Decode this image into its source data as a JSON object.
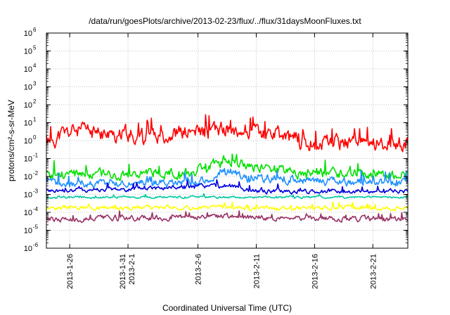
{
  "chart_data": {
    "type": "line",
    "title": "/data/run/goesPlots/archive/2013-02-23/flux/../flux/31daysMoonFluxes.txt",
    "xlabel": "Coordinated Universal Time (UTC)",
    "ylabel": "protons/cm²-s-sr-MeV",
    "y_scale": "log",
    "ylim": [
      1e-06,
      1000000.0
    ],
    "y_ticks": [
      {
        "exp": "-6",
        "value": 1e-06
      },
      {
        "exp": "-5",
        "value": 1e-05
      },
      {
        "exp": "-4",
        "value": 0.0001
      },
      {
        "exp": "-3",
        "value": 0.001
      },
      {
        "exp": "-2",
        "value": 0.01
      },
      {
        "exp": "-1",
        "value": 0.1
      },
      {
        "exp": "0",
        "value": 1
      },
      {
        "exp": "1",
        "value": 10
      },
      {
        "exp": "2",
        "value": 100
      },
      {
        "exp": "3",
        "value": 1000
      },
      {
        "exp": "4",
        "value": 10000
      },
      {
        "exp": "5",
        "value": 100000
      },
      {
        "exp": "6",
        "value": 1000000
      }
    ],
    "xlim": [
      "2013-01-24",
      "2013-02-24"
    ],
    "x_ticks": [
      {
        "label": "2013-1-26",
        "date": "2013-01-26"
      },
      {
        "label": "2013-1-31",
        "label2": "2013-2-1",
        "date": "2013-01-31"
      },
      {
        "label": "2013-2-6",
        "date": "2013-02-06"
      },
      {
        "label": "2013-2-11",
        "date": "2013-02-11"
      },
      {
        "label": "2013-2-16",
        "date": "2013-02-16"
      },
      {
        "label": "2013-2-21",
        "date": "2013-02-21"
      }
    ],
    "grid": true,
    "series": [
      {
        "color": "#ff0000",
        "mid": 1.2,
        "amp": 0.9,
        "seed": 11,
        "profile": [
          [
            0,
            -0.1
          ],
          [
            0.08,
            0.5
          ],
          [
            0.18,
            0.2
          ],
          [
            0.3,
            0.3
          ],
          [
            0.45,
            0.4
          ],
          [
            0.52,
            0.6
          ],
          [
            0.6,
            0.3
          ],
          [
            0.75,
            -0.2
          ],
          [
            0.9,
            -0.1
          ],
          [
            1,
            -0.3
          ]
        ]
      },
      {
        "color": "#00e000",
        "mid": 0.012,
        "amp": 0.55,
        "seed": 23,
        "profile": [
          [
            0,
            0
          ],
          [
            0.4,
            0.1
          ],
          [
            0.5,
            0.9
          ],
          [
            0.55,
            0.6
          ],
          [
            0.7,
            0.1
          ],
          [
            1,
            0
          ]
        ]
      },
      {
        "color": "#1e90ff",
        "mid": 0.004,
        "amp": 0.45,
        "seed": 37,
        "profile": [
          [
            0,
            0
          ],
          [
            0.45,
            0.1
          ],
          [
            0.5,
            0.8
          ],
          [
            0.56,
            0.3
          ],
          [
            1,
            0
          ]
        ]
      },
      {
        "color": "#0000e0",
        "mid": 0.0015,
        "amp": 0.25,
        "seed": 41,
        "profile": [
          [
            0,
            0
          ],
          [
            0.5,
            0.3
          ],
          [
            0.6,
            0
          ],
          [
            1,
            0
          ]
        ]
      },
      {
        "color": "#00c8a0",
        "mid": 0.0007,
        "amp": 0.12,
        "seed": 53,
        "profile": [
          [
            0,
            0
          ],
          [
            1,
            0
          ]
        ]
      },
      {
        "color": "#ffff00",
        "mid": 0.00018,
        "amp": 0.22,
        "seed": 67,
        "profile": [
          [
            0,
            0
          ],
          [
            1,
            0
          ]
        ]
      },
      {
        "color": "#993366",
        "mid": 4e-05,
        "amp": 0.3,
        "seed": 79,
        "profile": [
          [
            0,
            0
          ],
          [
            0.5,
            0.15
          ],
          [
            1,
            0
          ]
        ]
      }
    ]
  }
}
